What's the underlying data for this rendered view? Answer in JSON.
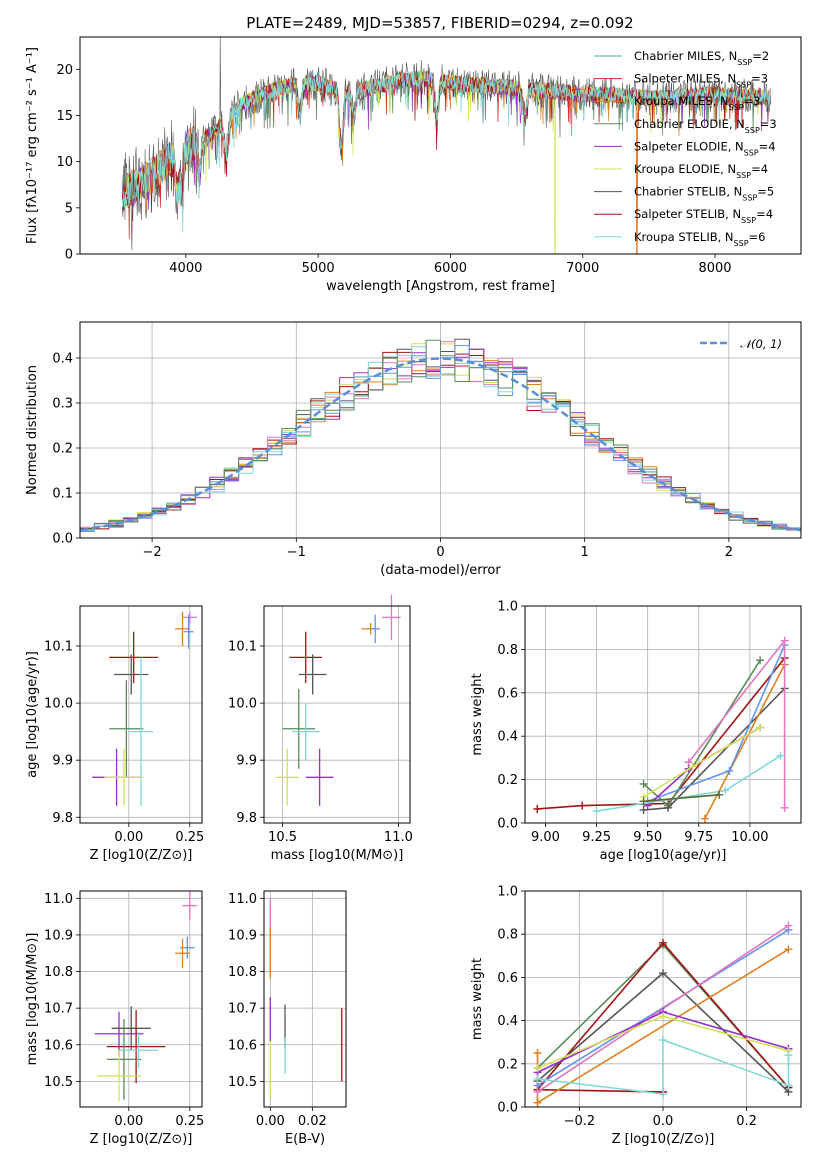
{
  "chart_data": [
    {
      "id": "spectrum",
      "type": "line",
      "title": "PLATE=2489, MJD=53857, FIBERID=0294, z=0.092",
      "xlabel": "wavelength [Angstrom, rest frame]",
      "ylabel": "Flux [fλ10⁻¹⁷ erg cm⁻² s⁻¹ A⁻¹]",
      "xlim": [
        3200,
        8650
      ],
      "ylim": [
        0,
        23.5
      ],
      "xticks": [
        "4000",
        "5000",
        "6000",
        "7000",
        "8000"
      ],
      "xtick_values": [
        4000,
        5000,
        6000,
        7000,
        8000
      ],
      "yticks": [
        "0",
        "5",
        "10",
        "15",
        "20"
      ],
      "ytick_values": [
        0,
        5,
        10,
        15,
        20
      ],
      "grid": false,
      "legend_placement": "right",
      "continuum": [
        [
          3500,
          6.5
        ],
        [
          3700,
          8
        ],
        [
          3900,
          10.5
        ],
        [
          4000,
          11.5
        ],
        [
          4200,
          13
        ],
        [
          4400,
          16
        ],
        [
          4600,
          17.5
        ],
        [
          4800,
          18.3
        ],
        [
          5000,
          18.5
        ],
        [
          5200,
          17.5
        ],
        [
          5400,
          18
        ],
        [
          5600,
          18.8
        ],
        [
          5800,
          19
        ],
        [
          6000,
          18.6
        ],
        [
          6200,
          18.3
        ],
        [
          6400,
          18.1
        ],
        [
          6600,
          17.8
        ],
        [
          6800,
          17.6
        ],
        [
          7000,
          17.3
        ],
        [
          7200,
          17.2
        ],
        [
          7400,
          17
        ],
        [
          7600,
          16.9
        ],
        [
          7800,
          17.1
        ],
        [
          8000,
          17.3
        ],
        [
          8200,
          17.1
        ],
        [
          8400,
          17
        ]
      ],
      "absorption_lines": [
        [
          3934,
          4
        ],
        [
          3969,
          4
        ],
        [
          4102,
          3
        ],
        [
          4304,
          4
        ],
        [
          4861,
          3
        ],
        [
          5175,
          6
        ],
        [
          5270,
          3
        ],
        [
          5895,
          4
        ],
        [
          6563,
          3
        ]
      ],
      "spikes": [
        [
          4260,
          23.5
        ],
        [
          5780,
          21
        ]
      ],
      "drops": [
        [
          6790,
          0
        ],
        [
          7410,
          0
        ]
      ],
      "series": [
        {
          "name": "Chabrier MILES, N",
          "sub": "SSP",
          "suffix": "=2",
          "color": "#5f9ea0"
        },
        {
          "name": "Salpeter MILES, N",
          "sub": "SSP",
          "suffix": "=3",
          "color": "#d62728"
        },
        {
          "name": "Kroupa MILES, N",
          "sub": "SSP",
          "suffix": "=3",
          "color": "#e08020"
        },
        {
          "name": "Chabrier ELODIE, N",
          "sub": "SSP",
          "suffix": "=3",
          "color": "#5b8a5b"
        },
        {
          "name": "Salpeter ELODIE, N",
          "sub": "SSP",
          "suffix": "=4",
          "color": "#9932cc"
        },
        {
          "name": "Kroupa ELODIE, N",
          "sub": "SSP",
          "suffix": "=4",
          "color": "#d4e157"
        },
        {
          "name": "Chabrier STELIB, N",
          "sub": "SSP",
          "suffix": "=5",
          "color": "#555555"
        },
        {
          "name": "Salpeter STELIB, N",
          "sub": "SSP",
          "suffix": "=4",
          "color": "#a31515"
        },
        {
          "name": "Kroupa STELIB, N",
          "sub": "SSP",
          "suffix": "=6",
          "color": "#80d8d8"
        }
      ]
    },
    {
      "id": "residuals",
      "type": "histogram",
      "xlabel": "(data-model)/error",
      "ylabel": "Normed distribution",
      "xlim": [
        -2.5,
        2.5
      ],
      "ylim": [
        0,
        0.48
      ],
      "xticks": [
        "−2",
        "−1",
        "0",
        "1",
        "2"
      ],
      "xtick_values": [
        -2,
        -1,
        0,
        1,
        2
      ],
      "yticks": [
        "0.0",
        "0.1",
        "0.2",
        "0.3",
        "0.4"
      ],
      "ytick_values": [
        0,
        0.1,
        0.2,
        0.3,
        0.4
      ],
      "grid": true,
      "bin_width": 0.1,
      "legend": [
        {
          "label": "𝒩(0, 1)",
          "style": "dashed",
          "color": "#5b8fd6"
        }
      ],
      "legend_placement": "top-right",
      "colors": [
        "#e08020",
        "#555555",
        "#9932cc",
        "#d4e157",
        "#a31515",
        "#e377c2",
        "#6495ed",
        "#80d8d8",
        "#5b8a5b"
      ]
    },
    {
      "id": "age-vs-Z",
      "type": "errorbar",
      "xlabel": "Z [log10(Z/Z⊙)]",
      "ylabel": "age  [log10(age/yr)]",
      "xlim": [
        -0.2,
        0.3
      ],
      "ylim": [
        9.79,
        10.17
      ],
      "xticks": [
        "0.00",
        "0.25"
      ],
      "xtick_values": [
        0,
        0.25
      ],
      "yticks": [
        "9.8",
        "9.9",
        "10.0",
        "10.1"
      ],
      "ytick_values": [
        9.8,
        9.9,
        10.0,
        10.1
      ],
      "points": [
        {
          "x": 0.02,
          "y": 10.08,
          "xerr": 0.1,
          "yerr": 0.045,
          "color": "#a31515"
        },
        {
          "x": 0.01,
          "y": 10.05,
          "xerr": 0.07,
          "yerr": 0.035,
          "color": "#555555"
        },
        {
          "x": -0.01,
          "y": 9.955,
          "xerr": 0.07,
          "yerr": 0.085,
          "color": "#5b8a5b"
        },
        {
          "x": 0.05,
          "y": 9.95,
          "xerr": 0.05,
          "yerr": 0.13,
          "color": "#80d8d8"
        },
        {
          "x": -0.05,
          "y": 9.87,
          "xerr": 0.1,
          "yerr": 0.05,
          "color": "#9932cc"
        },
        {
          "x": -0.02,
          "y": 9.87,
          "xerr": 0.08,
          "yerr": 0.05,
          "color": "#d4e157"
        },
        {
          "x": 0.25,
          "y": 10.15,
          "xerr": 0.03,
          "yerr": 0.01,
          "color": "#e377c2"
        },
        {
          "x": 0.22,
          "y": 10.13,
          "xerr": 0.03,
          "yerr": 0.03,
          "color": "#e08020"
        },
        {
          "x": 0.245,
          "y": 10.125,
          "xerr": 0.02,
          "yerr": 0.03,
          "color": "#6495ed"
        }
      ]
    },
    {
      "id": "age-vs-mass",
      "type": "errorbar",
      "xlabel": "mass [log10(M/M⊙)]",
      "ylabel": "",
      "xlim": [
        10.42,
        11.05
      ],
      "ylim": [
        9.79,
        10.17
      ],
      "xticks": [
        "10.5",
        "11.0"
      ],
      "xtick_values": [
        10.5,
        11.0
      ],
      "yticks": [
        "9.8",
        "9.9",
        "10.0",
        "10.1"
      ],
      "ytick_values": [
        9.8,
        9.9,
        10.0,
        10.1
      ],
      "points": [
        {
          "x": 10.6,
          "y": 10.08,
          "xerr": 0.07,
          "yerr": 0.045,
          "color": "#a31515"
        },
        {
          "x": 10.63,
          "y": 10.05,
          "xerr": 0.06,
          "yerr": 0.035,
          "color": "#555555"
        },
        {
          "x": 10.57,
          "y": 9.955,
          "xerr": 0.07,
          "yerr": 0.07,
          "color": "#5b8a5b"
        },
        {
          "x": 10.6,
          "y": 9.95,
          "xerr": 0.06,
          "yerr": 0.05,
          "color": "#80d8d8"
        },
        {
          "x": 10.66,
          "y": 9.87,
          "xerr": 0.06,
          "yerr": 0.05,
          "color": "#9932cc"
        },
        {
          "x": 10.52,
          "y": 9.87,
          "xerr": 0.05,
          "yerr": 0.05,
          "color": "#d4e157"
        },
        {
          "x": 10.97,
          "y": 10.15,
          "xerr": 0.04,
          "yerr": 0.04,
          "color": "#e377c2"
        },
        {
          "x": 10.88,
          "y": 10.13,
          "xerr": 0.04,
          "yerr": 0.01,
          "color": "#e08020"
        },
        {
          "x": 10.9,
          "y": 10.13,
          "xerr": 0.02,
          "yerr": 0.025,
          "color": "#6495ed"
        }
      ]
    },
    {
      "id": "weight-vs-age",
      "type": "line",
      "xlabel": "age  [log10(age/yr)]",
      "ylabel": "mass weight",
      "xlim": [
        8.9,
        10.25
      ],
      "ylim": [
        0,
        1
      ],
      "xticks": [
        "9.00",
        "9.25",
        "9.50",
        "9.75",
        "10.00"
      ],
      "xtick_values": [
        9.0,
        9.25,
        9.5,
        9.75,
        10.0
      ],
      "yticks": [
        "0.0",
        "0.2",
        "0.4",
        "0.6",
        "0.8",
        "1.0"
      ],
      "ytick_values": [
        0,
        0.2,
        0.4,
        0.6,
        0.8,
        1.0
      ],
      "grid": true,
      "series": [
        {
          "color": "#a31515",
          "points": [
            [
              8.96,
              0.065
            ],
            [
              9.18,
              0.08
            ],
            [
              9.6,
              0.09
            ],
            [
              10.17,
              0.76
            ]
          ]
        },
        {
          "color": "#5b8a5b",
          "points": [
            [
              9.48,
              0.18
            ],
            [
              9.6,
              0.08
            ],
            [
              10.05,
              0.75
            ]
          ]
        },
        {
          "color": "#555555",
          "points": [
            [
              9.48,
              0.06
            ],
            [
              9.6,
              0.07
            ],
            [
              10.17,
              0.62
            ]
          ]
        },
        {
          "color": "#e08020",
          "points": [
            [
              9.78,
              0.02
            ],
            [
              10.17,
              0.73
            ]
          ]
        },
        {
          "color": "#6495ed",
          "points": [
            [
              9.5,
              0.1
            ],
            [
              9.9,
              0.24
            ],
            [
              10.17,
              0.82
            ]
          ]
        },
        {
          "color": "#e377c2",
          "points": [
            [
              9.7,
              0.28
            ],
            [
              10.17,
              0.84
            ],
            [
              10.17,
              0.07
            ]
          ]
        },
        {
          "color": "#9932cc",
          "points": [
            [
              9.5,
              0.08
            ],
            [
              9.7,
              0.25
            ],
            [
              10.05,
              0.44
            ]
          ]
        },
        {
          "color": "#d4e157",
          "points": [
            [
              9.48,
              0.12
            ],
            [
              9.72,
              0.26
            ],
            [
              10.05,
              0.44
            ]
          ]
        },
        {
          "color": "#80d8d8",
          "points": [
            [
              9.25,
              0.055
            ],
            [
              9.88,
              0.15
            ],
            [
              10.15,
              0.31
            ]
          ]
        },
        {
          "color": "#556b2f",
          "points": [
            [
              9.48,
              0.1
            ],
            [
              9.85,
              0.13
            ]
          ]
        }
      ]
    },
    {
      "id": "mass-vs-Z",
      "type": "errorbar",
      "xlabel": "Z [log10(Z/Z⊙)]",
      "ylabel": "mass [log10(M/M⊙)]",
      "xlim": [
        -0.2,
        0.3
      ],
      "ylim": [
        10.43,
        11.02
      ],
      "xticks": [
        "0.00",
        "0.25"
      ],
      "xtick_values": [
        0,
        0.25
      ],
      "yticks": [
        "10.5",
        "10.6",
        "10.7",
        "10.8",
        "10.9",
        "11.0"
      ],
      "ytick_values": [
        10.5,
        10.6,
        10.7,
        10.8,
        10.9,
        11.0
      ],
      "points": [
        {
          "x": 0.25,
          "y": 10.98,
          "xerr": 0.03,
          "yerr": 0.04,
          "color": "#e377c2"
        },
        {
          "x": 0.24,
          "y": 10.865,
          "xerr": 0.03,
          "yerr": 0.03,
          "color": "#6495ed"
        },
        {
          "x": 0.22,
          "y": 10.85,
          "xerr": 0.03,
          "yerr": 0.04,
          "color": "#e08020"
        },
        {
          "x": -0.04,
          "y": 10.63,
          "xerr": 0.1,
          "yerr": 0.06,
          "color": "#9932cc"
        },
        {
          "x": 0.01,
          "y": 10.645,
          "xerr": 0.08,
          "yerr": 0.06,
          "color": "#555555"
        },
        {
          "x": 0.03,
          "y": 10.595,
          "xerr": 0.12,
          "yerr": 0.1,
          "color": "#a31515"
        },
        {
          "x": -0.02,
          "y": 10.56,
          "xerr": 0.07,
          "yerr": 0.11,
          "color": "#5b8a5b"
        },
        {
          "x": 0.04,
          "y": 10.585,
          "xerr": 0.08,
          "yerr": 0.05,
          "color": "#80d8d8"
        },
        {
          "x": -0.04,
          "y": 10.515,
          "xerr": 0.09,
          "yerr": 0.07,
          "color": "#d4e157"
        }
      ]
    },
    {
      "id": "mass-vs-ebv",
      "type": "errorbar",
      "xlabel": "E(B-V)",
      "ylabel": "",
      "xlim": [
        -0.003,
        0.036
      ],
      "ylim": [
        10.43,
        11.02
      ],
      "xticks": [
        "0.00",
        "0.02"
      ],
      "xtick_values": [
        0,
        0.02
      ],
      "yticks": [
        "10.5",
        "10.6",
        "10.7",
        "10.8",
        "10.9",
        "11.0"
      ],
      "ytick_values": [
        10.5,
        10.6,
        10.7,
        10.8,
        10.9,
        11.0
      ],
      "points": [
        {
          "x": 0.0,
          "y": 10.95,
          "xerr": 0,
          "yerr": 0.05,
          "color": "#e377c2"
        },
        {
          "x": 0.0,
          "y": 10.85,
          "xerr": 0,
          "yerr": 0.07,
          "color": "#e08020"
        },
        {
          "x": 0.0,
          "y": 10.67,
          "xerr": 0,
          "yerr": 0.06,
          "color": "#9932cc"
        },
        {
          "x": 0.0,
          "y": 10.53,
          "xerr": 0,
          "yerr": 0.08,
          "color": "#d4e157"
        },
        {
          "x": 0.007,
          "y": 10.65,
          "xerr": 0,
          "yerr": 0.06,
          "color": "#555555"
        },
        {
          "x": 0.007,
          "y": 10.57,
          "xerr": 0,
          "yerr": 0.05,
          "color": "#80d8d8"
        },
        {
          "x": 0.034,
          "y": 10.6,
          "xerr": 0,
          "yerr": 0.1,
          "color": "#a31515"
        }
      ]
    },
    {
      "id": "weight-vs-Z",
      "type": "line",
      "xlabel": "Z [log10(Z/Z⊙)]",
      "ylabel": "mass weight",
      "xlim": [
        -0.33,
        0.33
      ],
      "ylim": [
        0,
        1
      ],
      "xticks": [
        "−0.2",
        "0.0",
        "0.2"
      ],
      "xtick_values": [
        -0.2,
        0,
        0.2
      ],
      "yticks": [
        "0.0",
        "0.2",
        "0.4",
        "0.6",
        "0.8",
        "1.0"
      ],
      "ytick_values": [
        0,
        0.2,
        0.4,
        0.6,
        0.8,
        1.0
      ],
      "grid": true,
      "series": [
        {
          "color": "#5b8a5b",
          "points": [
            [
              -0.3,
              0.18
            ],
            [
              0,
              0.75
            ],
            [
              0.3,
              0.09
            ]
          ]
        },
        {
          "color": "#a31515",
          "points": [
            [
              -0.3,
              0.08
            ],
            [
              0,
              0.76
            ],
            [
              0.3,
              0.09
            ]
          ]
        },
        {
          "color": "#a31515",
          "points": [
            [
              -0.3,
              0.08
            ],
            [
              0,
              0.07
            ]
          ]
        },
        {
          "color": "#555555",
          "points": [
            [
              -0.3,
              0.12
            ],
            [
              0,
              0.62
            ],
            [
              0.3,
              0.07
            ]
          ]
        },
        {
          "color": "#e08020",
          "points": [
            [
              -0.3,
              0.02
            ],
            [
              0.3,
              0.73
            ]
          ]
        },
        {
          "color": "#e08020",
          "points": [
            [
              -0.3,
              0.25
            ],
            [
              -0.3,
              0.02
            ]
          ]
        },
        {
          "color": "#6495ed",
          "points": [
            [
              -0.3,
              0.1
            ],
            [
              0.3,
              0.82
            ]
          ]
        },
        {
          "color": "#e377c2",
          "points": [
            [
              -0.3,
              0.07
            ],
            [
              0.3,
              0.84
            ]
          ]
        },
        {
          "color": "#9932cc",
          "points": [
            [
              -0.3,
              0.16
            ],
            [
              0,
              0.44
            ],
            [
              0.3,
              0.27
            ]
          ]
        },
        {
          "color": "#d4e157",
          "points": [
            [
              -0.3,
              0.18
            ],
            [
              0,
              0.42
            ],
            [
              0.3,
              0.26
            ]
          ]
        },
        {
          "color": "#80d8d8",
          "points": [
            [
              -0.3,
              0.13
            ],
            [
              0,
              0.06
            ],
            [
              0,
              0.31
            ],
            [
              0.3,
              0.1
            ],
            [
              0.3,
              0.24
            ]
          ]
        }
      ]
    }
  ]
}
